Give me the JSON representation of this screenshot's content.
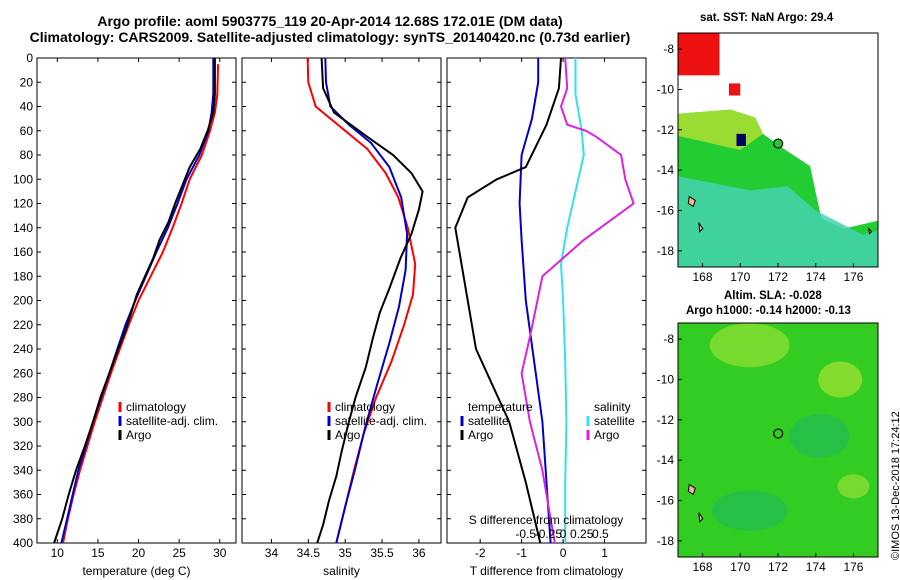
{
  "title_line1": "Argo profile: aoml 5903775_119 20-Apr-2014 12.68S 172.01E (DM data)",
  "title_line2": "Climatology: CARS2009. Satellite-adjusted climatology: synTS_20140420.nc (0.73d earlier)",
  "credit": "©IMOS 13-Dec-2018 17:24:12",
  "colors": {
    "climatology": "#ff0000",
    "satellite": "#0000cc",
    "argo": "#000000",
    "sal_satellite": "#33e0f0",
    "sal_argo": "#dd22dd"
  },
  "chart_data": [
    {
      "type": "line",
      "name": "temperature",
      "xlabel": "temperature (deg C)",
      "xlim": [
        7.5,
        32
      ],
      "xticks": [
        10,
        15,
        20,
        25,
        30
      ],
      "ylim": [
        400,
        0
      ],
      "yticks": [
        0,
        20,
        40,
        60,
        80,
        100,
        120,
        140,
        160,
        180,
        200,
        220,
        240,
        260,
        280,
        300,
        320,
        340,
        360,
        380,
        400
      ],
      "legend": [
        "climatology",
        "satellite-adj. clim.",
        "Argo"
      ],
      "legend_position": "bottom-right",
      "series": [
        {
          "name": "climatology",
          "color": "climatology",
          "points": [
            [
              29.8,
              5
            ],
            [
              29.7,
              30
            ],
            [
              29.4,
              45
            ],
            [
              28.8,
              60
            ],
            [
              27.8,
              80
            ],
            [
              26.3,
              100
            ],
            [
              25.3,
              120
            ],
            [
              24.2,
              140
            ],
            [
              23.0,
              160
            ],
            [
              21.5,
              180
            ],
            [
              20.0,
              200
            ],
            [
              18.8,
              220
            ],
            [
              17.7,
              240
            ],
            [
              16.6,
              260
            ],
            [
              15.6,
              280
            ],
            [
              14.6,
              300
            ],
            [
              13.7,
              320
            ],
            [
              12.8,
              340
            ],
            [
              12.0,
              360
            ],
            [
              11.3,
              380
            ],
            [
              10.7,
              400
            ]
          ]
        },
        {
          "name": "satellite-adj. clim.",
          "color": "satellite",
          "points": [
            [
              29.2,
              0
            ],
            [
              29.2,
              30
            ],
            [
              29.0,
              45
            ],
            [
              28.6,
              60
            ],
            [
              27.5,
              80
            ],
            [
              25.9,
              100
            ],
            [
              24.8,
              120
            ],
            [
              23.6,
              140
            ],
            [
              22.2,
              160
            ],
            [
              20.9,
              180
            ],
            [
              19.6,
              200
            ],
            [
              18.4,
              220
            ],
            [
              17.4,
              240
            ],
            [
              16.4,
              260
            ],
            [
              15.4,
              280
            ],
            [
              14.4,
              300
            ],
            [
              13.5,
              320
            ],
            [
              12.6,
              340
            ],
            [
              11.9,
              360
            ],
            [
              11.2,
              380
            ],
            [
              10.5,
              400
            ]
          ]
        },
        {
          "name": "Argo",
          "color": "argo",
          "points": [
            [
              29.4,
              0
            ],
            [
              29.4,
              30
            ],
            [
              29.2,
              45
            ],
            [
              28.5,
              60
            ],
            [
              27.6,
              75
            ],
            [
              26.3,
              90
            ],
            [
              25.4,
              105
            ],
            [
              24.5,
              120
            ],
            [
              23.7,
              135
            ],
            [
              22.6,
              150
            ],
            [
              21.8,
              165
            ],
            [
              20.8,
              180
            ],
            [
              19.8,
              195
            ],
            [
              19.1,
              210
            ],
            [
              18.4,
              225
            ],
            [
              17.5,
              240
            ],
            [
              16.4,
              260
            ],
            [
              15.3,
              280
            ],
            [
              14.4,
              300
            ],
            [
              13.4,
              320
            ],
            [
              12.3,
              340
            ],
            [
              11.4,
              360
            ],
            [
              10.6,
              380
            ],
            [
              9.6,
              400
            ]
          ]
        }
      ]
    },
    {
      "type": "line",
      "name": "salinity",
      "xlabel": "salinity",
      "xlim": [
        33.6,
        36.3
      ],
      "xticks": [
        34,
        34.5,
        35,
        35.5,
        36
      ],
      "ylim": [
        400,
        0
      ],
      "legend": [
        "climatology",
        "satellite-adj. clim.",
        "Argo"
      ],
      "legend_position": "bottom-right",
      "series": [
        {
          "name": "climatology",
          "color": "climatology",
          "points": [
            [
              34.49,
              0
            ],
            [
              34.5,
              20
            ],
            [
              34.6,
              40
            ],
            [
              35.0,
              60
            ],
            [
              35.3,
              75
            ],
            [
              35.55,
              95
            ],
            [
              35.72,
              115
            ],
            [
              35.85,
              140
            ],
            [
              35.95,
              170
            ],
            [
              35.92,
              195
            ],
            [
              35.8,
              220
            ],
            [
              35.63,
              250
            ],
            [
              35.42,
              280
            ],
            [
              35.25,
              310
            ],
            [
              35.12,
              340
            ],
            [
              35.0,
              370
            ],
            [
              34.88,
              400
            ]
          ]
        },
        {
          "name": "satellite-adj. clim.",
          "color": "satellite",
          "points": [
            [
              34.73,
              0
            ],
            [
              34.74,
              20
            ],
            [
              34.8,
              40
            ],
            [
              35.05,
              55
            ],
            [
              35.35,
              70
            ],
            [
              35.6,
              90
            ],
            [
              35.76,
              115
            ],
            [
              35.84,
              145
            ],
            [
              35.82,
              175
            ],
            [
              35.73,
              205
            ],
            [
              35.6,
              235
            ],
            [
              35.43,
              270
            ],
            [
              35.27,
              305
            ],
            [
              35.13,
              340
            ],
            [
              35.0,
              370
            ],
            [
              34.88,
              400
            ]
          ]
        },
        {
          "name": "Argo",
          "color": "argo",
          "points": [
            [
              34.68,
              0
            ],
            [
              34.7,
              25
            ],
            [
              34.85,
              45
            ],
            [
              35.3,
              65
            ],
            [
              35.65,
              80
            ],
            [
              35.9,
              95
            ],
            [
              36.05,
              110
            ],
            [
              36.0,
              125
            ],
            [
              35.9,
              145
            ],
            [
              35.75,
              165
            ],
            [
              35.6,
              190
            ],
            [
              35.47,
              210
            ],
            [
              35.38,
              230
            ],
            [
              35.28,
              255
            ],
            [
              35.14,
              280
            ],
            [
              35.05,
              300
            ],
            [
              34.95,
              325
            ],
            [
              34.88,
              345
            ],
            [
              34.78,
              365
            ],
            [
              34.7,
              385
            ],
            [
              34.62,
              400
            ]
          ]
        }
      ]
    },
    {
      "type": "line",
      "name": "difference",
      "xlabel": "T difference from climatology",
      "top_axis_label": "S difference from climatology",
      "xlim": [
        -2.8,
        2.0
      ],
      "xticks": [
        -2,
        -1,
        0,
        1
      ],
      "top_xticks": [
        "-0.5",
        "-0.25",
        "0",
        "0.25",
        "0.5"
      ],
      "ylim": [
        400,
        0
      ],
      "legend_left_title": "temperature",
      "legend_right_title": "salinity",
      "legend": [
        "satellite",
        "Argo",
        "satellite",
        "Argo"
      ],
      "legend_position": "bottom",
      "series": [
        {
          "name": "temperature satellite",
          "color": "satellite",
          "points": [
            [
              -0.6,
              0
            ],
            [
              -0.6,
              20
            ],
            [
              -0.75,
              50
            ],
            [
              -1.0,
              80
            ],
            [
              -1.05,
              120
            ],
            [
              -1.0,
              150
            ],
            [
              -0.9,
              200
            ],
            [
              -0.7,
              250
            ],
            [
              -0.5,
              300
            ],
            [
              -0.4,
              350
            ],
            [
              -0.3,
              400
            ]
          ]
        },
        {
          "name": "temperature Argo",
          "color": "argo",
          "points": [
            [
              -0.05,
              0
            ],
            [
              -0.1,
              25
            ],
            [
              -0.4,
              55
            ],
            [
              -0.9,
              90
            ],
            [
              -1.6,
              100
            ],
            [
              -2.3,
              115
            ],
            [
              -2.6,
              140
            ],
            [
              -2.4,
              180
            ],
            [
              -2.1,
              240
            ],
            [
              -1.3,
              300
            ],
            [
              -0.9,
              350
            ],
            [
              -0.55,
              400
            ]
          ]
        },
        {
          "name": "salinity satellite",
          "color": "sal_satellite",
          "points": [
            [
              0.3,
              0
            ],
            [
              0.3,
              30
            ],
            [
              0.45,
              60
            ],
            [
              0.5,
              80
            ],
            [
              0.3,
              110
            ],
            [
              0.1,
              140
            ],
            [
              -0.05,
              170
            ],
            [
              0.0,
              200
            ],
            [
              0.05,
              250
            ],
            [
              0.08,
              300
            ],
            [
              0.05,
              350
            ],
            [
              0.05,
              400
            ]
          ]
        },
        {
          "name": "salinity Argo",
          "color": "sal_argo",
          "points": [
            [
              0.05,
              0
            ],
            [
              0.1,
              25
            ],
            [
              -0.05,
              40
            ],
            [
              0.1,
              55
            ],
            [
              0.55,
              60
            ],
            [
              0.8,
              65
            ],
            [
              1.4,
              80
            ],
            [
              1.5,
              100
            ],
            [
              1.7,
              120
            ],
            [
              0.5,
              150
            ],
            [
              -0.5,
              180
            ],
            [
              -0.8,
              230
            ],
            [
              -1.0,
              260
            ],
            [
              -0.8,
              300
            ],
            [
              -0.5,
              340
            ],
            [
              -0.3,
              380
            ],
            [
              -0.2,
              400
            ]
          ]
        }
      ]
    },
    {
      "type": "heatmap",
      "name": "sst_map",
      "title": "sat. SST: NaN Argo: 29.4",
      "xticks": [
        168,
        170,
        172,
        174,
        176
      ],
      "yticks": [
        -8,
        -10,
        -12,
        -14,
        -16,
        -18
      ],
      "xlim": [
        166.7,
        177.3
      ],
      "ylim": [
        -18.8,
        -7.2
      ],
      "argo_position": [
        172.01,
        -12.68
      ]
    },
    {
      "type": "heatmap",
      "name": "sla_map",
      "title": "Altim. SLA: -0.028",
      "subtitle": "Argo h1000: -0.14 h2000: -0.13",
      "xticks": [
        168,
        170,
        172,
        174,
        176
      ],
      "yticks": [
        -8,
        -10,
        -12,
        -14,
        -16,
        -18
      ],
      "xlim": [
        166.7,
        177.3
      ],
      "ylim": [
        -18.8,
        -7.2
      ],
      "argo_position": [
        172.01,
        -12.68
      ]
    }
  ]
}
